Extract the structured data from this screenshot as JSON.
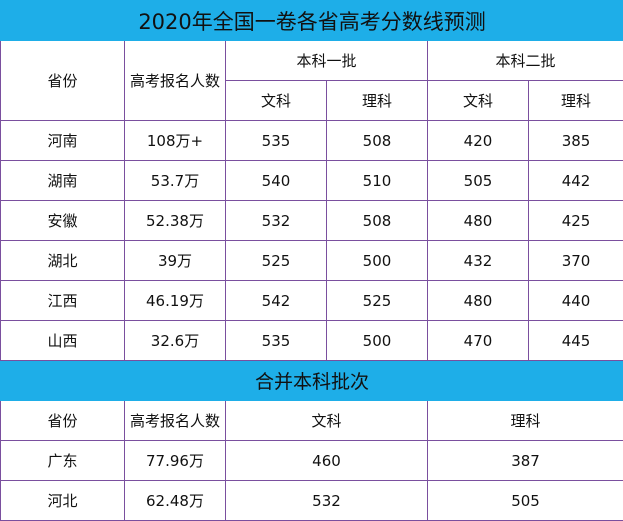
{
  "title": "2020年全国一卷各省高考分数线预测",
  "header": {
    "province": "省份",
    "applicants": "高考报名人数",
    "batch1": "本科一批",
    "batch2": "本科二批",
    "arts": "文科",
    "science": "理科"
  },
  "rows": [
    {
      "province": "河南",
      "applicants": "108万+",
      "b1_arts": "535",
      "b1_sci": "508",
      "b2_arts": "420",
      "b2_sci": "385"
    },
    {
      "province": "湖南",
      "applicants": "53.7万",
      "b1_arts": "540",
      "b1_sci": "510",
      "b2_arts": "505",
      "b2_sci": "442"
    },
    {
      "province": "安徽",
      "applicants": "52.38万",
      "b1_arts": "532",
      "b1_sci": "508",
      "b2_arts": "480",
      "b2_sci": "425"
    },
    {
      "province": "湖北",
      "applicants": "39万",
      "b1_arts": "525",
      "b1_sci": "500",
      "b2_arts": "432",
      "b2_sci": "370"
    },
    {
      "province": "江西",
      "applicants": "46.19万",
      "b1_arts": "542",
      "b1_sci": "525",
      "b2_arts": "480",
      "b2_sci": "440"
    },
    {
      "province": "山西",
      "applicants": "32.6万",
      "b1_arts": "535",
      "b1_sci": "500",
      "b2_arts": "470",
      "b2_sci": "445"
    }
  ],
  "merged": {
    "title": "合并本科批次",
    "header": {
      "province": "省份",
      "applicants": "高考报名人数",
      "arts": "文科",
      "science": "理科"
    },
    "rows": [
      {
        "province": "广东",
        "applicants": "77.96万",
        "arts": "460",
        "science": "387"
      },
      {
        "province": "河北",
        "applicants": "62.48万",
        "arts": "532",
        "science": "505"
      }
    ]
  },
  "colors": {
    "banner": "#1eaee8",
    "border": "#7a4f9e"
  }
}
